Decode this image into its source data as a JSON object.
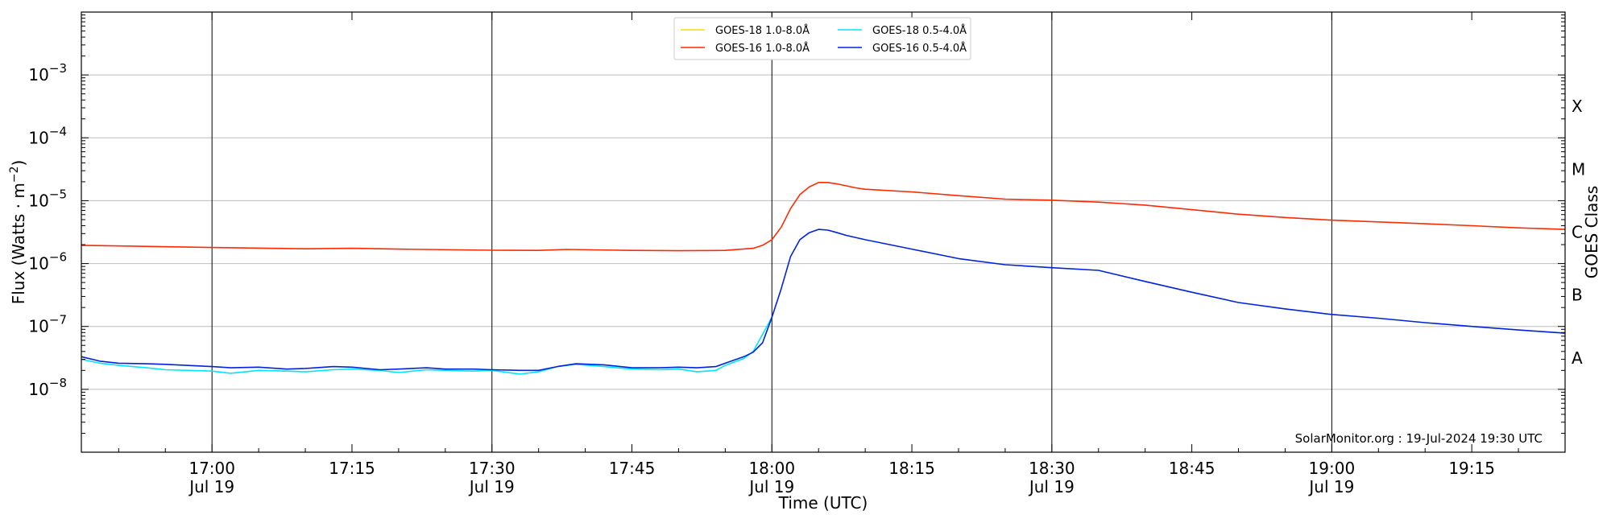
{
  "chart_data": {
    "type": "line",
    "xlabel": "Time (UTC)",
    "ylabel": "Flux (Watts · m⁻²)",
    "ylabel_parts": {
      "base": "Flux (Watts · m",
      "sup": "−2",
      "close": ")"
    },
    "right_label": "GOES Class",
    "credit": "SolarMonitor.org : 19-Jul-2024 19:30 UTC",
    "xlim": [
      "16:46",
      "19:25"
    ],
    "ylim": [
      1e-09,
      0.01
    ],
    "y_scale": "log",
    "grid": "horizontal at each decade, vertical lines at 30-minute ticks",
    "legend_position": "top-center",
    "x_ticks": [
      {
        "time": "17:00",
        "label": "17:00",
        "date": "Jul 19"
      },
      {
        "time": "17:15",
        "label": "17:15",
        "date": ""
      },
      {
        "time": "17:30",
        "label": "17:30",
        "date": "Jul 19"
      },
      {
        "time": "17:45",
        "label": "17:45",
        "date": ""
      },
      {
        "time": "18:00",
        "label": "18:00",
        "date": "Jul 19"
      },
      {
        "time": "18:15",
        "label": "18:15",
        "date": ""
      },
      {
        "time": "18:30",
        "label": "18:30",
        "date": "Jul 19"
      },
      {
        "time": "18:45",
        "label": "18:45",
        "date": ""
      },
      {
        "time": "19:00",
        "label": "19:00",
        "date": "Jul 19"
      },
      {
        "time": "19:15",
        "label": "19:15",
        "date": ""
      }
    ],
    "y_ticks": [
      {
        "value": 1e-08,
        "exp": "−8"
      },
      {
        "value": 1e-07,
        "exp": "−7"
      },
      {
        "value": 1e-06,
        "exp": "−6"
      },
      {
        "value": 1e-05,
        "exp": "−5"
      },
      {
        "value": 0.0001,
        "exp": "−4"
      },
      {
        "value": 0.001,
        "exp": "−3"
      }
    ],
    "y_tick_base": "10",
    "class_labels": [
      {
        "label": "A",
        "value": 3.16e-08
      },
      {
        "label": "B",
        "value": 3.16e-07
      },
      {
        "label": "C",
        "value": 3.16e-06
      },
      {
        "label": "M",
        "value": 3.16e-05
      },
      {
        "label": "X",
        "value": 0.000316
      }
    ],
    "series": [
      {
        "name": "GOES-18 1.0-8.0Å",
        "color": "#ffd700",
        "x": [],
        "y": []
      },
      {
        "name": "GOES-16 1.0-8.0Å",
        "color": "#ff2a00",
        "x": [
          "16:46",
          "17:00",
          "17:10",
          "17:15",
          "17:20",
          "17:30",
          "17:35",
          "17:38",
          "17:45",
          "17:50",
          "17:55",
          "17:58",
          "17:59",
          "18:00",
          "18:01",
          "18:02",
          "18:03",
          "18:04",
          "18:05",
          "18:06",
          "18:07",
          "18:08",
          "18:09",
          "18:10",
          "18:15",
          "18:20",
          "18:25",
          "18:30",
          "18:35",
          "18:40",
          "18:45",
          "18:50",
          "18:55",
          "19:00",
          "19:05",
          "19:10",
          "19:15",
          "19:20",
          "19:25"
        ],
        "y": [
          1.95e-06,
          1.8e-06,
          1.72e-06,
          1.75e-06,
          1.7e-06,
          1.63e-06,
          1.62e-06,
          1.68e-06,
          1.62e-06,
          1.6e-06,
          1.62e-06,
          1.75e-06,
          1.95e-06,
          2.4e-06,
          3.8e-06,
          7.5e-06,
          1.25e-05,
          1.65e-05,
          1.95e-05,
          1.95e-05,
          1.85e-05,
          1.72e-05,
          1.6e-05,
          1.52e-05,
          1.38e-05,
          1.2e-05,
          1.06e-05,
          1.02e-05,
          9.5e-06,
          8.5e-06,
          7.2e-06,
          6.1e-06,
          5.4e-06,
          4.9e-06,
          4.6e-06,
          4.3e-06,
          4e-06,
          3.7e-06,
          3.5e-06
        ]
      },
      {
        "name": "GOES-18 0.5-4.0Å",
        "color": "#00e5ff",
        "x": [
          "16:46",
          "16:48",
          "16:50",
          "16:53",
          "16:55",
          "17:00",
          "17:02",
          "17:05",
          "17:08",
          "17:10",
          "17:13",
          "17:15",
          "17:18",
          "17:20",
          "17:23",
          "17:25",
          "17:28",
          "17:30",
          "17:33",
          "17:35",
          "17:37",
          "17:39",
          "17:42",
          "17:45",
          "17:48",
          "17:50",
          "17:52",
          "17:54",
          "17:55",
          "17:57",
          "17:58",
          "18:00"
        ],
        "y": [
          3e-08,
          2.6e-08,
          2.4e-08,
          2.2e-08,
          2.05e-08,
          1.95e-08,
          1.8e-08,
          2e-08,
          1.95e-08,
          1.9e-08,
          2.05e-08,
          2.1e-08,
          2e-08,
          1.85e-08,
          2.05e-08,
          2e-08,
          1.95e-08,
          2e-08,
          1.75e-08,
          1.9e-08,
          2.3e-08,
          2.5e-08,
          2.3e-08,
          2.1e-08,
          2.05e-08,
          2.1e-08,
          1.9e-08,
          2e-08,
          2.4e-08,
          3.1e-08,
          4e-08,
          1.4e-07
        ]
      },
      {
        "name": "GOES-16 0.5-4.0Å",
        "color": "#0022dd",
        "x": [
          "16:46",
          "16:48",
          "16:50",
          "16:53",
          "16:55",
          "17:00",
          "17:02",
          "17:05",
          "17:08",
          "17:10",
          "17:13",
          "17:15",
          "17:18",
          "17:20",
          "17:23",
          "17:25",
          "17:28",
          "17:30",
          "17:33",
          "17:35",
          "17:37",
          "17:39",
          "17:42",
          "17:45",
          "17:48",
          "17:50",
          "17:52",
          "17:54",
          "17:55",
          "17:57",
          "17:58",
          "17:59",
          "18:00",
          "18:01",
          "18:02",
          "18:03",
          "18:04",
          "18:05",
          "18:06",
          "18:07",
          "18:08",
          "18:10",
          "18:15",
          "18:20",
          "18:25",
          "18:30",
          "18:35",
          "18:40",
          "18:45",
          "18:50",
          "18:55",
          "19:00",
          "19:05",
          "19:10",
          "19:15",
          "19:20",
          "19:25"
        ],
        "y": [
          3.3e-08,
          2.8e-08,
          2.6e-08,
          2.55e-08,
          2.5e-08,
          2.3e-08,
          2.2e-08,
          2.25e-08,
          2.1e-08,
          2.15e-08,
          2.3e-08,
          2.25e-08,
          2.05e-08,
          2.1e-08,
          2.2e-08,
          2.1e-08,
          2.1e-08,
          2.05e-08,
          2e-08,
          2e-08,
          2.3e-08,
          2.55e-08,
          2.45e-08,
          2.2e-08,
          2.2e-08,
          2.25e-08,
          2.2e-08,
          2.3e-08,
          2.6e-08,
          3.3e-08,
          3.9e-08,
          5.5e-08,
          1.4e-07,
          4e-07,
          1.3e-06,
          2.4e-06,
          3.1e-06,
          3.5e-06,
          3.4e-06,
          3.1e-06,
          2.8e-06,
          2.4e-06,
          1.7e-06,
          1.2e-06,
          9.6e-07,
          8.6e-07,
          7.8e-07,
          5.2e-07,
          3.5e-07,
          2.4e-07,
          1.9e-07,
          1.55e-07,
          1.35e-07,
          1.15e-07,
          1e-07,
          8.8e-08,
          7.8e-08
        ]
      }
    ]
  }
}
